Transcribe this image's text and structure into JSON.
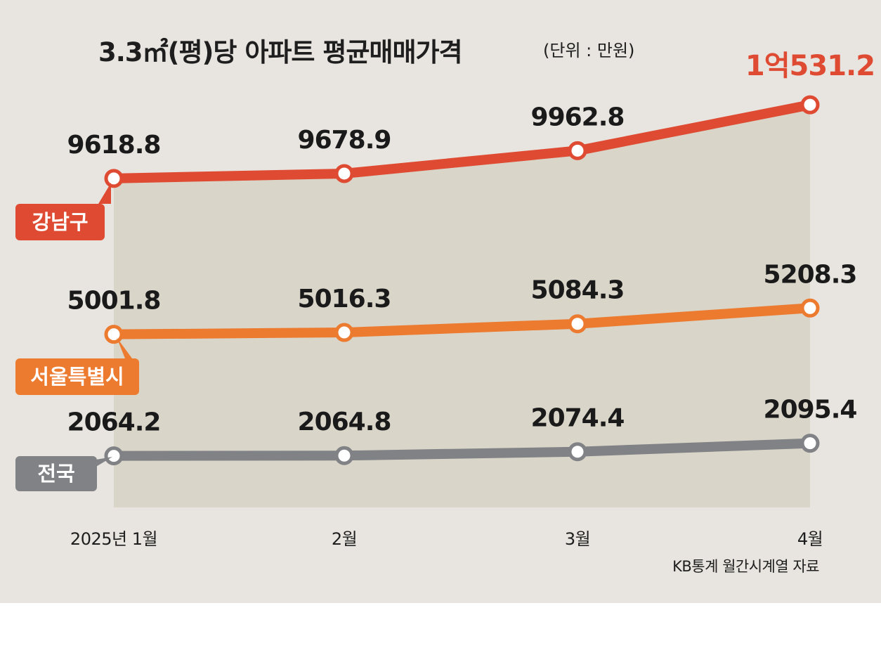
{
  "colors": {
    "background": "#e8e4df",
    "plot_area": "#d9d5c9",
    "gangnam": "#df4b32",
    "seoul": "#ec7a2f",
    "national": "#808285",
    "highlight_value": "#df4b32"
  },
  "chart_data": {
    "type": "line",
    "title": "3.3㎡(평)당 아파트 평균매매가격",
    "unit": "(단위 : 만원)",
    "categories": [
      "2025년 1월",
      "2월",
      "3월",
      "4월"
    ],
    "series": [
      {
        "name": "강남구",
        "values": [
          9618.8,
          9678.9,
          9962.8,
          10531.2
        ],
        "labels": [
          "9618.8",
          "9678.9",
          "9962.8",
          "1억531.2"
        ]
      },
      {
        "name": "서울특별시",
        "values": [
          5001.8,
          5016.3,
          5084.3,
          5208.3
        ],
        "labels": [
          "5001.8",
          "5016.3",
          "5084.3",
          "5208.3"
        ]
      },
      {
        "name": "전국",
        "values": [
          2064.2,
          2064.8,
          2074.4,
          2095.4
        ],
        "labels": [
          "2064.2",
          "2064.8",
          "2074.4",
          "2095.4"
        ]
      }
    ],
    "source": "KB통계 월간시계열 자료",
    "grid": false,
    "legend": "left labels"
  }
}
